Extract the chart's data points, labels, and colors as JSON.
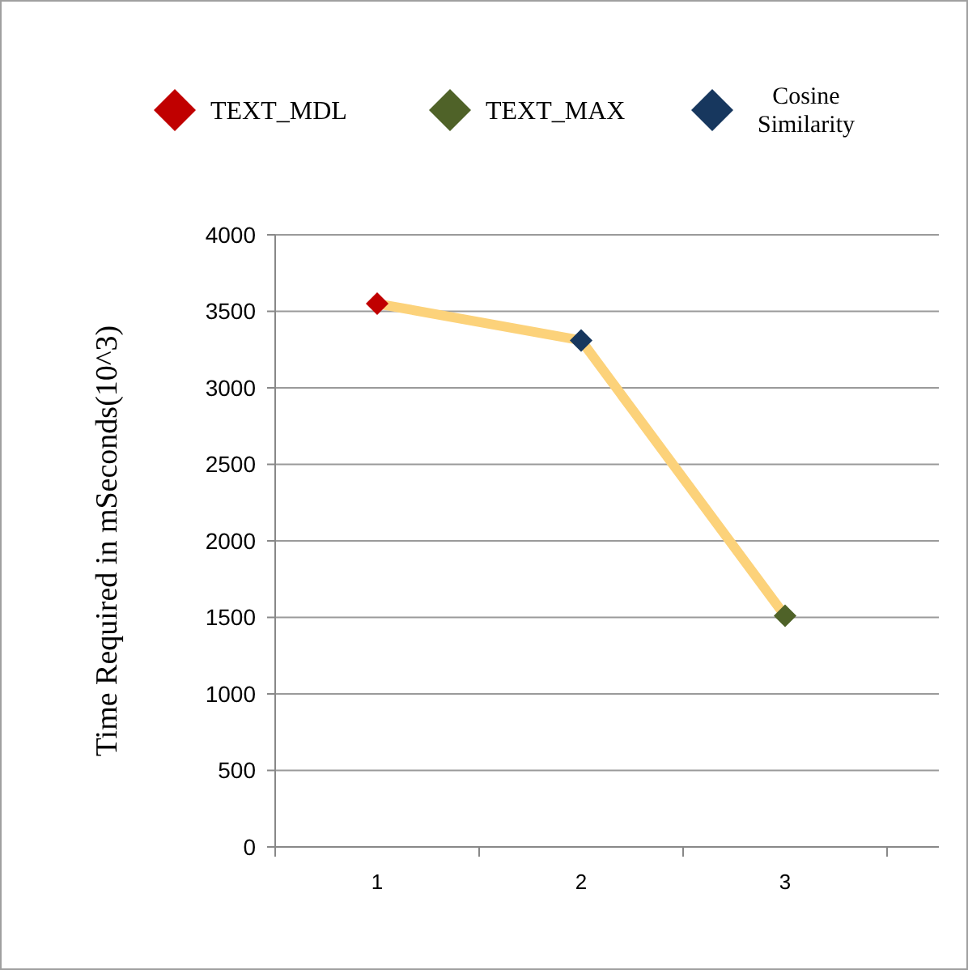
{
  "chart_data": {
    "type": "line",
    "ylabel": "Time Required in mSeconds(10^3)",
    "categories": [
      "1",
      "2",
      "3"
    ],
    "series": [
      {
        "color": "#fcd27a",
        "values": [
          3550,
          3310,
          1510
        ],
        "marker": "none"
      },
      {
        "type": "scatter",
        "name": "TEXT_MDL",
        "color": "#c00000",
        "x": [
          "1"
        ],
        "values": [
          3550
        ],
        "marker": "diamond"
      },
      {
        "type": "scatter",
        "name": "TEXT_MAX",
        "color": "#4f6228",
        "x": [
          "3"
        ],
        "values": [
          1510
        ],
        "marker": "diamond"
      },
      {
        "type": "scatter",
        "name": "Cosine Similarity",
        "color": "#17375e",
        "x": [
          "2"
        ],
        "values": [
          3310
        ],
        "marker": "diamond"
      }
    ],
    "ylim": [
      0,
      4000
    ],
    "yticks": [
      0,
      500,
      1000,
      1500,
      2000,
      2500,
      3000,
      3500,
      4000
    ],
    "grid": "y",
    "legend": "top"
  }
}
